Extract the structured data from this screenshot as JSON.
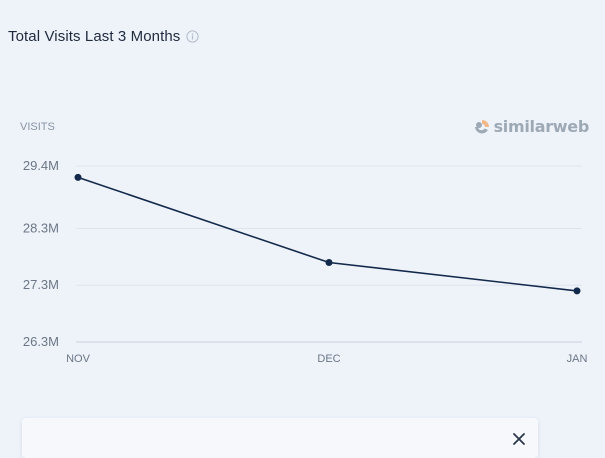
{
  "header": {
    "title": "Total Visits Last 3 Months"
  },
  "branding": {
    "logo_text": "similarweb",
    "logo_color": "#9ea9b6",
    "logo_accent": "#f2b88a"
  },
  "chart_data": {
    "type": "line",
    "title": "Total Visits Last 3 Months",
    "ylabel": "VISITS",
    "xlabel": "",
    "categories": [
      "NOV",
      "DEC",
      "JAN"
    ],
    "series": [
      {
        "values": [
          29.2,
          27.7,
          27.2
        ],
        "color": "#13294b"
      }
    ],
    "y_ticks": [
      "29.4M",
      "28.3M",
      "27.3M",
      "26.3M"
    ],
    "y_tick_values": [
      29.4,
      28.3,
      27.3,
      26.3
    ],
    "ylim": [
      26.3,
      29.4
    ],
    "grid": true,
    "legend": "none"
  }
}
